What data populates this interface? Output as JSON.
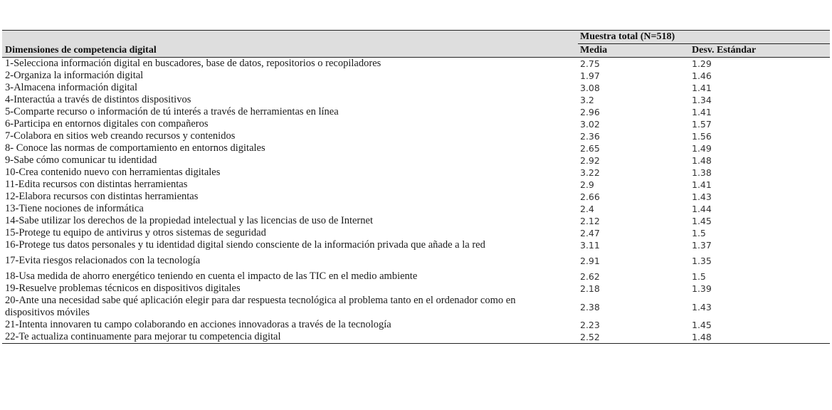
{
  "table": {
    "dimension_header": "Dimensiones de competencia digital",
    "group_header": "Muestra total (N=518)",
    "col_mean": "Media",
    "col_sd": "Desv. Estándar",
    "rows": [
      {
        "label": "1-Selecciona información digital en buscadores, base de datos, repositorios o recopiladores",
        "mean": "2.75",
        "sd": "1.29"
      },
      {
        "label": "2-Organiza la información digital",
        "mean": "1.97",
        "sd": "1.46"
      },
      {
        "label": "3-Almacena información digital",
        "mean": "3.08",
        "sd": "1.41"
      },
      {
        "label": "4-Interactúa a través de distintos dispositivos",
        "mean": "3.2",
        "sd": "1.34"
      },
      {
        "label": "5-Comparte recurso o información de tú interés a través de herramientas en línea",
        "mean": "2.96",
        "sd": "1.41"
      },
      {
        "label": "6-Participa en entornos digitales con compañeros",
        "mean": "3.02",
        "sd": "1.57"
      },
      {
        "label": "7-Colabora en sitios web creando recursos y contenidos",
        "mean": "2.36",
        "sd": "1.56"
      },
      {
        "label": "8- Conoce las normas de comportamiento en entornos digitales",
        "mean": "2.65",
        "sd": "1.49"
      },
      {
        "label": "9-Sabe cómo comunicar tu identidad",
        "mean": "2.92",
        "sd": "1.48"
      },
      {
        "label": "10-Crea contenido nuevo con herramientas digitales",
        "mean": "3.22",
        "sd": "1.38"
      },
      {
        "label": "11-Edita recursos con distintas herramientas",
        "mean": "2.9",
        "sd": "1.41"
      },
      {
        "label": "12-Elabora recursos con distintas herramientas",
        "mean": "2.66",
        "sd": "1.43"
      },
      {
        "label": "13-Tiene nociones de informática",
        "mean": "2.4",
        "sd": "1.44"
      },
      {
        "label": "14-Sabe utilizar los derechos de la propiedad intelectual y las licencias de uso de Internet",
        "mean": "2.12",
        "sd": "1.45"
      },
      {
        "label": "15-Protege tu equipo de antivirus y otros sistemas de seguridad",
        "mean": "2.47",
        "sd": "1.5"
      },
      {
        "label": "16-Protege tus datos personales y tu identidad digital siendo consciente de la información privada que añade a la red",
        "mean": "3.11",
        "sd": "1.37"
      },
      {
        "label": "17-Evita riesgos relacionados con la tecnología",
        "mean": "2.91",
        "sd": "1.35"
      },
      {
        "label": "18-Usa medida de ahorro energético teniendo en cuenta el impacto de las TIC en el medio ambiente",
        "mean": "2.62",
        "sd": "1.5"
      },
      {
        "label": "19-Resuelve problemas técnicos en dispositivos digitales",
        "mean": "2.18",
        "sd": "1.39"
      },
      {
        "label": "20-Ante una necesidad sabe qué aplicación elegir para dar respuesta tecnológica al problema tanto en el ordenador como en dispositivos móviles",
        "mean": "2.38",
        "sd": "1.43"
      },
      {
        "label": "21-Intenta innovaren tu campo colaborando en acciones innovadoras a través de la tecnología",
        "mean": "2.23",
        "sd": "1.45"
      },
      {
        "label": "22-Te actualiza continuamente para mejorar tu competencia digital",
        "mean": "2.52",
        "sd": "1.48"
      }
    ]
  }
}
